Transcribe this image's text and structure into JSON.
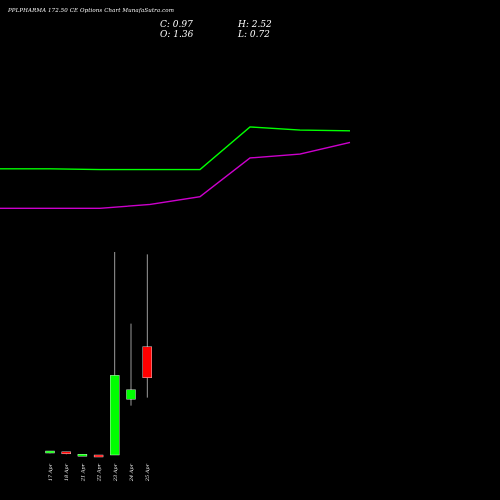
{
  "header": {
    "title": "PPLPHARMA 172.50  CE Options  Chart MunafaSutra.com",
    "c_text": "C: 0.97",
    "o_text": "O: 1.36",
    "h_text": "H: 2.52",
    "l_text": "L: 0.72"
  },
  "chart_data": {
    "type": "candlestick",
    "title": "PPLPHARMA 172.50  CE Options  Chart MunafaSutra.com",
    "categories": [
      "17 Apr",
      "18 Apr",
      "21 Apr",
      "22 Apr",
      "23 Apr",
      "24 Apr",
      "25 Apr"
    ],
    "candles": [
      {
        "date": "17 Apr",
        "open": 0.04,
        "high": 0.05,
        "low": 0.02,
        "close": 0.05,
        "color": "#00ff00"
      },
      {
        "date": "18 Apr",
        "open": 0.04,
        "high": 0.04,
        "low": 0.01,
        "close": 0.02,
        "color": "#ff0000"
      },
      {
        "date": "21 Apr",
        "open": 0.01,
        "high": 0.01,
        "low": 0.0,
        "close": 0.0,
        "color": "#00ff00"
      },
      {
        "date": "22 Apr",
        "open": 0.0,
        "high": 0.0,
        "low": -0.02,
        "close": -0.02,
        "color": "#ff0000"
      },
      {
        "date": "23 Apr",
        "open": 0.0,
        "high": 2.55,
        "low": 0.0,
        "close": 1.0,
        "color": "#00ff00"
      },
      {
        "date": "24 Apr",
        "open": 0.7,
        "high": 1.65,
        "low": 0.62,
        "close": 0.82,
        "color": "#00ff00"
      },
      {
        "date": "25 Apr",
        "open": 1.36,
        "high": 2.52,
        "low": 0.72,
        "close": 0.97,
        "color": "#ff0000"
      }
    ],
    "price_axis": [
      0,
      2.6
    ],
    "moving_averages": [
      {
        "color": "#00ff00",
        "x": [
          -1,
          0,
          1,
          2,
          3,
          4,
          5,
          6
        ],
        "values": [
          2.08,
          2.08,
          2.07,
          2.07,
          2.07,
          2.62,
          2.58,
          2.57
        ]
      },
      {
        "color": "#cc00cc",
        "x": [
          -1,
          0,
          1,
          2,
          3,
          4,
          5,
          6
        ],
        "values": [
          1.57,
          1.57,
          1.57,
          1.62,
          1.72,
          2.22,
          2.27,
          2.42
        ]
      }
    ],
    "ma_axis": [
      0,
      4.0
    ],
    "grid": false,
    "legend": "none"
  }
}
